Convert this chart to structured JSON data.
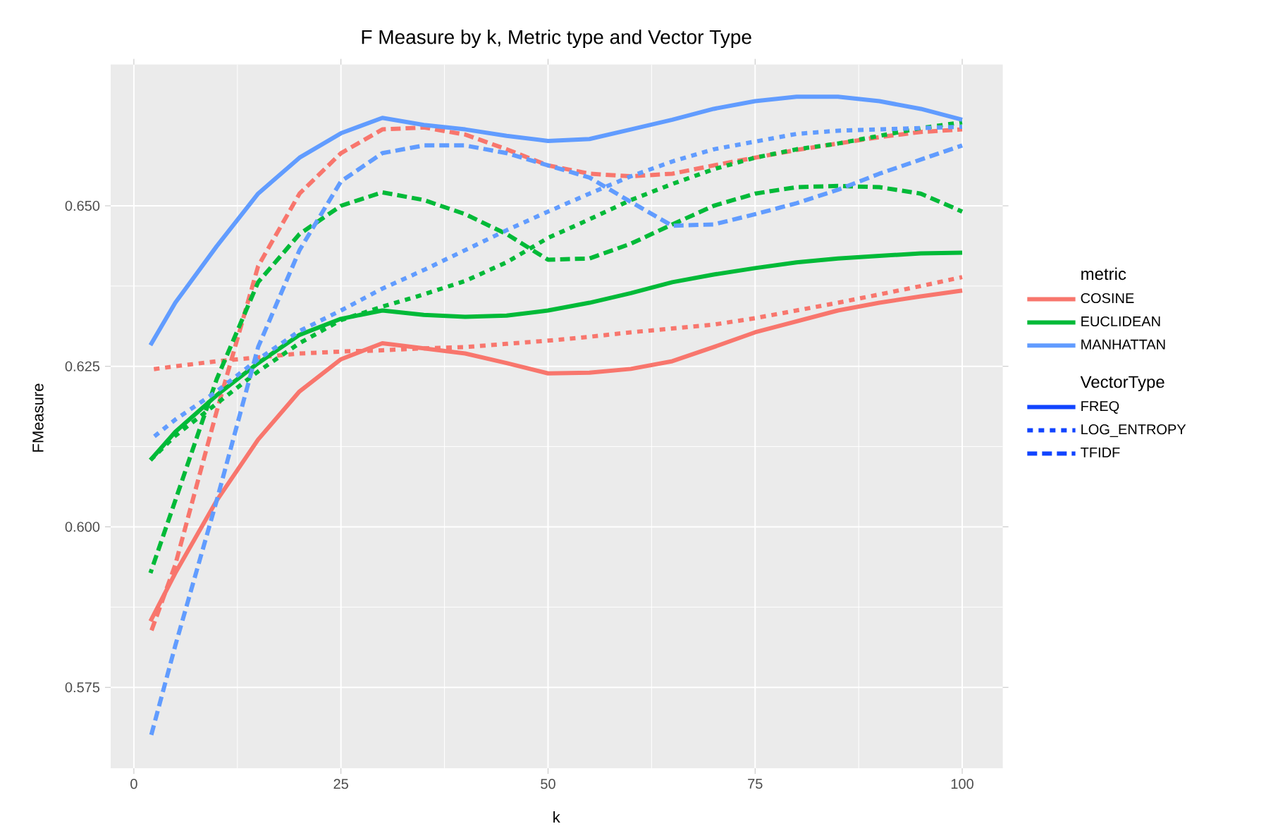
{
  "chart_data": {
    "type": "line",
    "title": "F Measure by k, Metric type and Vector Type",
    "xlabel": "k",
    "ylabel": "FMeasure",
    "x": [
      2,
      5,
      10,
      15,
      20,
      25,
      30,
      35,
      40,
      45,
      50,
      55,
      60,
      65,
      70,
      75,
      80,
      85,
      90,
      95,
      100
    ],
    "series": [
      {
        "color": "#f8766d",
        "line_style": "solid",
        "values": [
          0.5853,
          0.5928,
          0.6041,
          0.6136,
          0.6211,
          0.6261,
          0.6286,
          0.6278,
          0.627,
          0.6255,
          0.6239,
          0.624,
          0.6246,
          0.6258,
          0.628,
          0.6303,
          0.632,
          0.6337,
          0.6349,
          0.6359,
          0.6368
        ]
      },
      {
        "color": "#f8766d",
        "line_style": "dotted",
        "values": [
          0.6245,
          0.625,
          0.6258,
          0.6264,
          0.627,
          0.6273,
          0.6275,
          0.6278,
          0.628,
          0.6285,
          0.629,
          0.6296,
          0.6303,
          0.6309,
          0.6315,
          0.6325,
          0.6337,
          0.6349,
          0.6362,
          0.6375,
          0.6389
        ]
      },
      {
        "color": "#f8766d",
        "line_style": "dashed",
        "values": [
          0.5834,
          0.5941,
          0.618,
          0.6406,
          0.6519,
          0.6582,
          0.6619,
          0.6622,
          0.6611,
          0.6588,
          0.6563,
          0.655,
          0.6546,
          0.655,
          0.6563,
          0.6575,
          0.6587,
          0.6597,
          0.6607,
          0.6615,
          0.6619
        ]
      },
      {
        "color": "#00ba38",
        "line_style": "solid",
        "values": [
          0.6104,
          0.6148,
          0.6205,
          0.6255,
          0.6299,
          0.6324,
          0.6337,
          0.633,
          0.6327,
          0.6329,
          0.6337,
          0.6349,
          0.6364,
          0.6381,
          0.6393,
          0.6403,
          0.6412,
          0.6418,
          0.6422,
          0.6426,
          0.6427
        ]
      },
      {
        "color": "#00ba38",
        "line_style": "dotted",
        "values": [
          0.6104,
          0.6142,
          0.6192,
          0.6242,
          0.6286,
          0.6322,
          0.6343,
          0.6362,
          0.6383,
          0.6412,
          0.645,
          0.6479,
          0.6509,
          0.6534,
          0.6557,
          0.6575,
          0.6588,
          0.6597,
          0.6609,
          0.6621,
          0.663
        ]
      },
      {
        "color": "#00ba38",
        "line_style": "dashed",
        "values": [
          0.5928,
          0.6041,
          0.623,
          0.6381,
          0.6456,
          0.65,
          0.6521,
          0.6509,
          0.6487,
          0.6456,
          0.6416,
          0.6418,
          0.6441,
          0.6471,
          0.65,
          0.6519,
          0.6529,
          0.6531,
          0.6529,
          0.6519,
          0.6491
        ]
      },
      {
        "color": "#619cff",
        "line_style": "solid",
        "values": [
          0.6283,
          0.6349,
          0.6437,
          0.6519,
          0.6575,
          0.6613,
          0.6637,
          0.6626,
          0.6619,
          0.6609,
          0.6601,
          0.6604,
          0.6619,
          0.6634,
          0.6651,
          0.6663,
          0.667,
          0.667,
          0.6663,
          0.6651,
          0.6634
        ]
      },
      {
        "color": "#619cff",
        "line_style": "dotted",
        "values": [
          0.6136,
          0.6167,
          0.6211,
          0.6261,
          0.6305,
          0.6337,
          0.6371,
          0.64,
          0.6431,
          0.6462,
          0.6491,
          0.6519,
          0.6546,
          0.6569,
          0.6588,
          0.66,
          0.6612,
          0.6617,
          0.6619,
          0.6621,
          0.6623
        ]
      },
      {
        "color": "#619cff",
        "line_style": "dashed",
        "values": [
          0.5671,
          0.5815,
          0.6041,
          0.628,
          0.6431,
          0.6538,
          0.6582,
          0.6594,
          0.6594,
          0.6582,
          0.6563,
          0.6544,
          0.6506,
          0.6469,
          0.6471,
          0.6487,
          0.6504,
          0.6525,
          0.655,
          0.6572,
          0.6594
        ]
      }
    ],
    "xlim": [
      -2.8,
      104.9
    ],
    "ylim": [
      0.5624,
      0.672
    ],
    "xticks": [
      0,
      25,
      50,
      75,
      100
    ],
    "yticks": [
      {
        "value": 0.575,
        "label": "0.575"
      },
      {
        "value": 0.6,
        "label": "0.600"
      },
      {
        "value": 0.625,
        "label": "0.625"
      },
      {
        "value": 0.65,
        "label": "0.650"
      }
    ],
    "grid": true,
    "annotations": [
      "metric",
      "COSINE",
      "EUCLIDEAN",
      "MANHATTAN",
      "VectorType",
      "FREQ",
      "LOG_ENTROPY",
      "TFIDF"
    ]
  }
}
